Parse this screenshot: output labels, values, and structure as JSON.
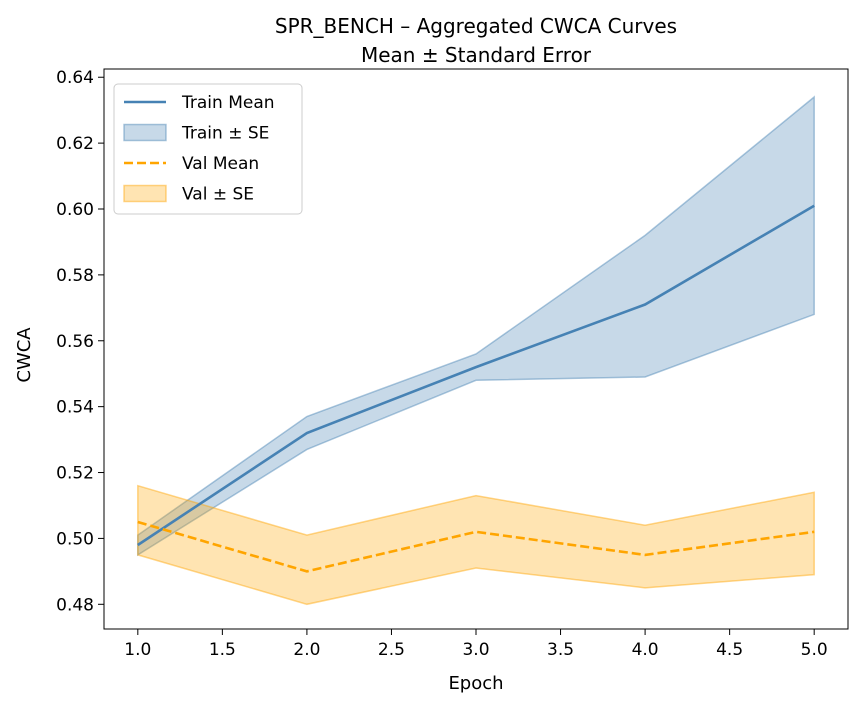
{
  "chart_data": {
    "type": "line",
    "title": "SPR_BENCH – Aggregated CWCA Curves",
    "subtitle": "Mean ± Standard Error",
    "xlabel": "Epoch",
    "ylabel": "CWCA",
    "xlim": [
      0.8,
      5.2
    ],
    "ylim": [
      0.4725,
      0.6425
    ],
    "xticks": [
      "1.0",
      "1.5",
      "2.0",
      "2.5",
      "3.0",
      "3.5",
      "4.0",
      "4.5",
      "5.0"
    ],
    "yticks": [
      "0.48",
      "0.50",
      "0.52",
      "0.54",
      "0.56",
      "0.58",
      "0.60",
      "0.62",
      "0.64"
    ],
    "x": [
      1,
      2,
      3,
      4,
      5
    ],
    "series": [
      {
        "name": "Train Mean",
        "band_name": "Train ± SE",
        "color": "#4682b4",
        "linestyle": "solid",
        "values": [
          0.498,
          0.532,
          0.552,
          0.571,
          0.601
        ],
        "lower": [
          0.495,
          0.527,
          0.548,
          0.549,
          0.568
        ],
        "upper": [
          0.501,
          0.537,
          0.556,
          0.592,
          0.634
        ]
      },
      {
        "name": "Val Mean",
        "band_name": "Val ± SE",
        "color": "#ffa500",
        "linestyle": "dashed",
        "values": [
          0.505,
          0.49,
          0.502,
          0.495,
          0.502
        ],
        "lower": [
          0.495,
          0.48,
          0.491,
          0.485,
          0.489
        ],
        "upper": [
          0.516,
          0.501,
          0.513,
          0.504,
          0.514
        ]
      }
    ],
    "legend_position": "top-left",
    "grid": false
  }
}
